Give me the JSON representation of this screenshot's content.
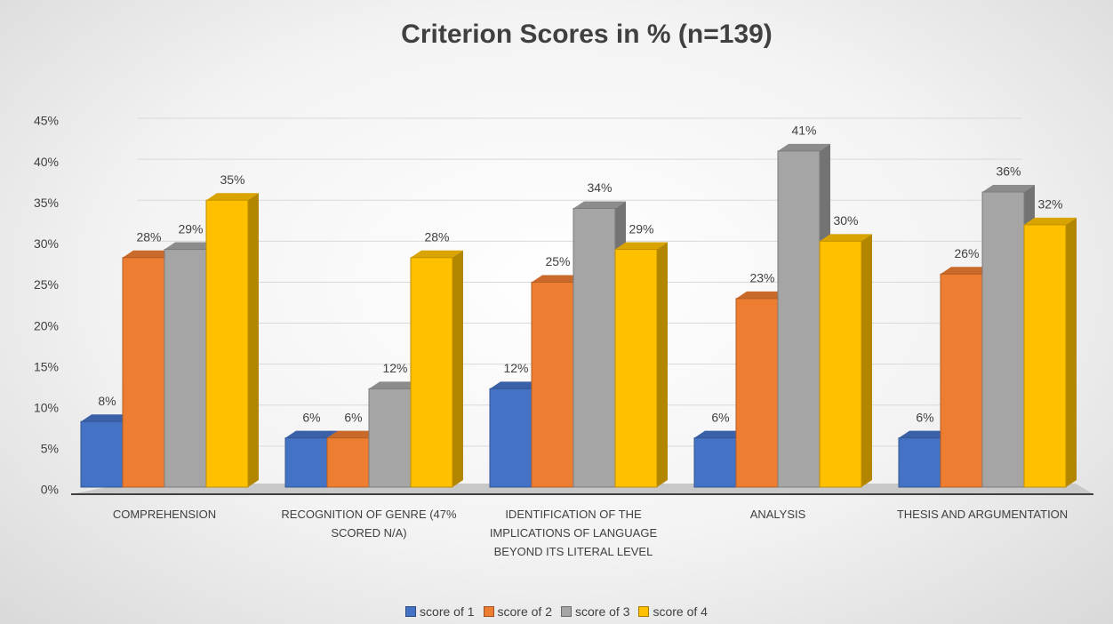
{
  "chart_data": {
    "type": "bar",
    "title": "Criterion Scores in % (n=139)",
    "categories": [
      "COMPREHENSION",
      "RECOGNITION OF GENRE (47% SCORED N/A)",
      "IDENTIFICATION OF THE IMPLICATIONS OF LANGUAGE BEYOND ITS LITERAL LEVEL",
      "ANALYSIS",
      "THESIS AND ARGUMENTATION"
    ],
    "series": [
      {
        "name": "score of 1",
        "color": "#4472c4",
        "values": [
          8,
          6,
          12,
          6,
          6
        ],
        "value_labels": [
          "8%",
          "6%",
          "12%",
          "6%",
          "6%"
        ]
      },
      {
        "name": "score of 2",
        "color": "#ed7d31",
        "values": [
          28,
          6,
          25,
          23,
          26
        ],
        "value_labels": [
          "28%",
          "6%",
          "25%",
          "23%",
          "26%"
        ]
      },
      {
        "name": "score of 3",
        "color": "#a5a5a5",
        "values": [
          29,
          12,
          34,
          41,
          36
        ],
        "value_labels": [
          "29%",
          "12%",
          "34%",
          "41%",
          "36%"
        ]
      },
      {
        "name": "score of 4",
        "color": "#ffc000",
        "values": [
          35,
          28,
          29,
          30,
          32
        ],
        "value_labels": [
          "35%",
          "28%",
          "29%",
          "30%",
          "32%"
        ]
      }
    ],
    "ylim": [
      0,
      45
    ],
    "yticks": [
      {
        "value": 0,
        "label": "0%"
      },
      {
        "value": 5,
        "label": "5%"
      },
      {
        "value": 10,
        "label": "10%"
      },
      {
        "value": 15,
        "label": "15%"
      },
      {
        "value": 20,
        "label": "20%"
      },
      {
        "value": 25,
        "label": "25%"
      },
      {
        "value": 30,
        "label": "30%"
      },
      {
        "value": 35,
        "label": "35%"
      },
      {
        "value": 40,
        "label": "40%"
      },
      {
        "value": 45,
        "label": "45%"
      }
    ],
    "grid": true,
    "legend": "bottom"
  }
}
